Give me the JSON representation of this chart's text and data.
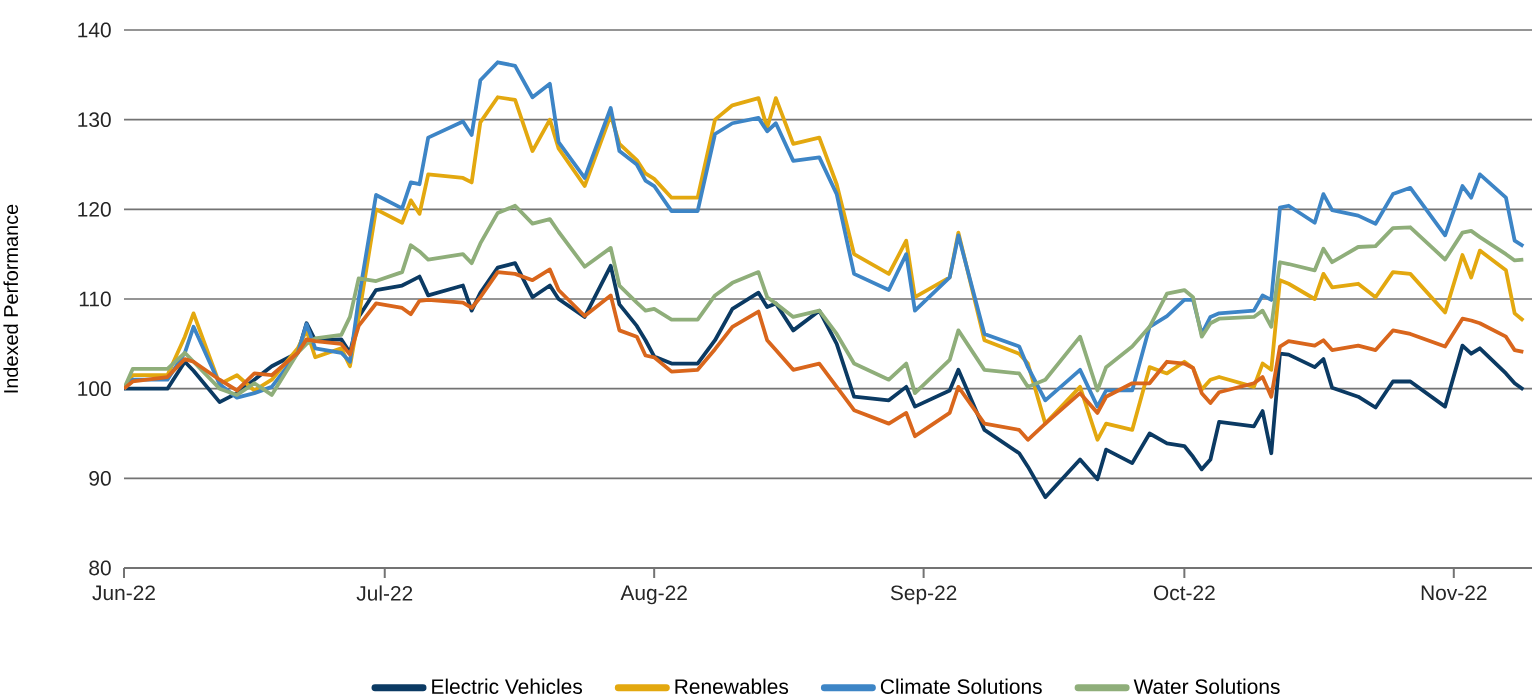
{
  "chart_data": {
    "type": "line",
    "ylabel": "Indexed Performance",
    "grid": "y",
    "legend": "bottom",
    "marker": "none",
    "line_style": "solid",
    "xlim": [
      "2022-06-01",
      "2022-11-10"
    ],
    "ylim": [
      80,
      140
    ],
    "yticks": [
      80,
      90,
      100,
      110,
      120,
      130,
      140
    ],
    "xticks": [
      {
        "value": "2022-06-01",
        "label": "Jun-22"
      },
      {
        "value": "2022-07-01",
        "label": "Jul-22"
      },
      {
        "value": "2022-08-01",
        "label": "Aug-22"
      },
      {
        "value": "2022-09-01",
        "label": "Sep-22"
      },
      {
        "value": "2022-10-01",
        "label": "Oct-22"
      },
      {
        "value": "2022-11-01",
        "label": "Nov-22"
      }
    ],
    "x": [
      "2022-06-01",
      "2022-06-02",
      "2022-06-06",
      "2022-06-08",
      "2022-06-09",
      "2022-06-12",
      "2022-06-14",
      "2022-06-16",
      "2022-06-18",
      "2022-06-21",
      "2022-06-22",
      "2022-06-23",
      "2022-06-26",
      "2022-06-27",
      "2022-06-28",
      "2022-06-30",
      "2022-07-03",
      "2022-07-04",
      "2022-07-05",
      "2022-07-06",
      "2022-07-10",
      "2022-07-11",
      "2022-07-12",
      "2022-07-14",
      "2022-07-16",
      "2022-07-18",
      "2022-07-20",
      "2022-07-21",
      "2022-07-24",
      "2022-07-27",
      "2022-07-28",
      "2022-07-30",
      "2022-07-31",
      "2022-08-01",
      "2022-08-03",
      "2022-08-06",
      "2022-08-08",
      "2022-08-10",
      "2022-08-13",
      "2022-08-14",
      "2022-08-15",
      "2022-08-17",
      "2022-08-20",
      "2022-08-22",
      "2022-08-24",
      "2022-08-28",
      "2022-08-30",
      "2022-08-31",
      "2022-09-04",
      "2022-09-05",
      "2022-09-08",
      "2022-09-12",
      "2022-09-13",
      "2022-09-15",
      "2022-09-19",
      "2022-09-21",
      "2022-09-22",
      "2022-09-25",
      "2022-09-27",
      "2022-09-29",
      "2022-10-01",
      "2022-10-02",
      "2022-10-03",
      "2022-10-04",
      "2022-10-05",
      "2022-10-09",
      "2022-10-10",
      "2022-10-11",
      "2022-10-12",
      "2022-10-13",
      "2022-10-16",
      "2022-10-17",
      "2022-10-18",
      "2022-10-21",
      "2022-10-23",
      "2022-10-25",
      "2022-10-27",
      "2022-10-31",
      "2022-11-02",
      "2022-11-03",
      "2022-11-04",
      "2022-11-07",
      "2022-11-08",
      "2022-11-09"
    ],
    "series": [
      {
        "name": "Electric Vehicles",
        "color": "#0b3a63",
        "values": [
          100,
          100,
          100,
          103,
          102,
          98.5,
          99.5,
          101,
          102.5,
          104,
          107.3,
          105.4,
          105.5,
          104,
          108,
          111,
          111.5,
          112,
          112.5,
          110.4,
          111.5,
          108.7,
          110.7,
          113.5,
          114,
          110.2,
          111.5,
          110,
          108,
          113.7,
          109.4,
          107,
          105.4,
          103.6,
          102.8,
          102.8,
          105.4,
          108.9,
          110.7,
          109.1,
          109.5,
          106.5,
          108.7,
          105,
          99.1,
          98.7,
          100.2,
          98,
          99.8,
          102.1,
          95.4,
          92.8,
          91.3,
          87.9,
          92.1,
          89.9,
          93.2,
          91.7,
          95,
          93.9,
          93.6,
          92.4,
          91,
          92.1,
          96.3,
          95.8,
          97.5,
          92.8,
          103.9,
          103.8,
          102.4,
          103.3,
          100.1,
          99.1,
          97.9,
          100.8,
          100.8,
          98,
          104.8,
          103.9,
          104.5,
          101.7,
          100.6,
          99.9
        ]
      },
      {
        "name": "Renewables",
        "color": "#e3a80f",
        "values": [
          100,
          101.5,
          101.5,
          105.8,
          108.4,
          100.5,
          101.5,
          99.8,
          101,
          104.5,
          106.5,
          103.5,
          104.5,
          102.5,
          108,
          120,
          118.5,
          121,
          119.5,
          123.9,
          123.5,
          123,
          129.7,
          132.5,
          132.2,
          126.5,
          130,
          126.8,
          122.6,
          130.5,
          127.3,
          125.5,
          124,
          123.4,
          121.3,
          121.3,
          130,
          131.6,
          132.4,
          129.1,
          132.4,
          127.3,
          128,
          122.8,
          115,
          112.8,
          116.5,
          110.2,
          112.4,
          117.4,
          105.4,
          103.9,
          102.8,
          96.1,
          100.2,
          94.3,
          96.1,
          95.4,
          102.4,
          101.7,
          103,
          102.3,
          99.9,
          101,
          101.3,
          100.2,
          102.8,
          102.1,
          112.1,
          111.7,
          110,
          112.8,
          111.3,
          111.7,
          110.2,
          113,
          112.8,
          108.5,
          114.9,
          112.4,
          115.4,
          113.2,
          108.4,
          107.6
        ]
      },
      {
        "name": "Climate Solutions",
        "color": "#3d85c6",
        "values": [
          100,
          101,
          101,
          104,
          106.9,
          100.5,
          99,
          99.5,
          100.2,
          104,
          107.2,
          104.5,
          104,
          103,
          110,
          121.6,
          120.1,
          123,
          122.8,
          128,
          129.8,
          128.3,
          134.4,
          136.4,
          136,
          132.5,
          134,
          127.5,
          123.5,
          131.3,
          126.5,
          125,
          123.2,
          122.6,
          119.8,
          119.8,
          128.4,
          129.6,
          130.2,
          128.7,
          129.6,
          125.4,
          125.8,
          121.7,
          112.8,
          111,
          115,
          108.7,
          112.4,
          117.1,
          106.1,
          104.7,
          102.4,
          98.7,
          102.1,
          98,
          99.8,
          99.8,
          106.9,
          108.1,
          109.9,
          109.9,
          106.1,
          108,
          108.4,
          108.7,
          110.4,
          109.9,
          120.2,
          120.4,
          118.5,
          121.7,
          119.9,
          119.3,
          118.4,
          121.7,
          122.4,
          117.1,
          122.6,
          121.3,
          123.9,
          121.3,
          116.5,
          115.9
        ]
      },
      {
        "name": "Water Solutions",
        "color": "#8fae7a",
        "values": [
          100,
          102.2,
          102.2,
          104,
          103,
          100,
          99.3,
          100.6,
          99.3,
          104,
          105,
          105.6,
          106,
          108,
          112.3,
          112,
          113,
          116,
          115.3,
          114.4,
          115,
          114,
          116.2,
          119.6,
          120.4,
          118.4,
          118.9,
          117.5,
          113.6,
          115.7,
          111.5,
          109.6,
          108.7,
          108.9,
          107.7,
          107.7,
          110.4,
          111.8,
          113,
          110.2,
          109.5,
          108,
          108.7,
          106.1,
          102.8,
          101,
          102.8,
          99.5,
          103.2,
          106.5,
          102.1,
          101.7,
          100.2,
          101,
          105.8,
          99.8,
          102.4,
          104.7,
          106.9,
          110.6,
          111,
          110.2,
          105.8,
          107.3,
          107.8,
          108,
          108.7,
          106.9,
          114.1,
          113.9,
          113.2,
          115.6,
          114.1,
          115.8,
          115.9,
          117.9,
          118,
          114.4,
          117.4,
          117.6,
          116.9,
          115,
          114.3,
          114.4
        ]
      },
      {
        "color": "#d9661c",
        "values": [
          100,
          100.8,
          101.3,
          103.3,
          103,
          101,
          99.8,
          101.7,
          101.5,
          104,
          105.5,
          105.3,
          105,
          103.8,
          107,
          109.5,
          109,
          108.3,
          109.8,
          109.9,
          109.6,
          109,
          110.2,
          113,
          112.8,
          112.1,
          113.3,
          111,
          108.1,
          110.4,
          106.5,
          105.8,
          103.7,
          103.5,
          101.9,
          102.1,
          104.4,
          106.9,
          108.6,
          105.4,
          104.3,
          102.1,
          102.8,
          100.2,
          97.6,
          96.1,
          97.3,
          94.7,
          97.3,
          100.2,
          96.1,
          95.4,
          94.3,
          96.1,
          99.5,
          97.3,
          99.1,
          100.6,
          100.6,
          103,
          102.8,
          102.3,
          99.5,
          98.4,
          99.6,
          100.6,
          101.3,
          99.1,
          104.7,
          105.3,
          104.8,
          105.4,
          104.3,
          104.8,
          104.3,
          106.5,
          106.1,
          104.7,
          107.8,
          107.6,
          107.3,
          105.8,
          104.3,
          104.1
        ]
      }
    ]
  }
}
